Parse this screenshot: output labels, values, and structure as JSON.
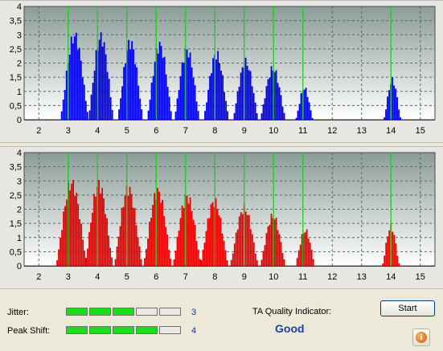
{
  "chart_data": [
    {
      "type": "bar",
      "title": "",
      "xlabel": "",
      "ylabel": "",
      "xlim": [
        1.5,
        15.5
      ],
      "ylim": [
        0,
        4
      ],
      "x_ticks": [
        "2",
        "3",
        "4",
        "5",
        "6",
        "7",
        "8",
        "9",
        "10",
        "11",
        "12",
        "13",
        "14",
        "15"
      ],
      "y_ticks": [
        "0",
        "0,5",
        "1",
        "1,5",
        "2",
        "2,5",
        "3",
        "3,5",
        "4"
      ],
      "grid": true,
      "marker_lines": [
        3,
        4,
        5,
        6,
        7,
        8,
        9,
        10,
        11,
        14
      ],
      "bar_color": "#0000e8",
      "marker_color": "#18d218",
      "series": [
        {
          "peaks": [
            {
              "center": 3.22,
              "height": 3.2,
              "half_width": 0.5
            },
            {
              "center": 4.12,
              "height": 3.15,
              "half_width": 0.45
            },
            {
              "center": 5.12,
              "height": 2.95,
              "half_width": 0.45
            },
            {
              "center": 6.12,
              "height": 2.85,
              "half_width": 0.45
            },
            {
              "center": 7.05,
              "height": 2.65,
              "half_width": 0.45
            },
            {
              "center": 8.05,
              "height": 2.5,
              "half_width": 0.45
            },
            {
              "center": 9.05,
              "height": 2.2,
              "half_width": 0.45
            },
            {
              "center": 9.98,
              "height": 1.95,
              "half_width": 0.45
            },
            {
              "center": 11.05,
              "height": 1.2,
              "half_width": 0.3
            },
            {
              "center": 14.05,
              "height": 1.5,
              "half_width": 0.3
            }
          ]
        }
      ]
    },
    {
      "type": "bar",
      "title": "",
      "xlabel": "",
      "ylabel": "",
      "xlim": [
        1.5,
        15.5
      ],
      "ylim": [
        0,
        4
      ],
      "x_ticks": [
        "2",
        "3",
        "4",
        "5",
        "6",
        "7",
        "8",
        "9",
        "10",
        "11",
        "12",
        "13",
        "14",
        "15"
      ],
      "y_ticks": [
        "0",
        "0,5",
        "1",
        "1,5",
        "2",
        "2,5",
        "3",
        "3,5",
        "4"
      ],
      "grid": true,
      "marker_lines": [
        3,
        4,
        5,
        6,
        7,
        8,
        9,
        10,
        11,
        14
      ],
      "bar_color": "#e80000",
      "marker_color": "#18d218",
      "series": [
        {
          "peaks": [
            {
              "center": 3.12,
              "height": 3.15,
              "half_width": 0.55
            },
            {
              "center": 4.05,
              "height": 3.1,
              "half_width": 0.5
            },
            {
              "center": 5.05,
              "height": 2.95,
              "half_width": 0.5
            },
            {
              "center": 6.05,
              "height": 2.85,
              "half_width": 0.5
            },
            {
              "center": 7.05,
              "height": 2.65,
              "half_width": 0.5
            },
            {
              "center": 7.98,
              "height": 2.45,
              "half_width": 0.5
            },
            {
              "center": 9.0,
              "height": 2.2,
              "half_width": 0.5
            },
            {
              "center": 9.98,
              "height": 1.9,
              "half_width": 0.45
            },
            {
              "center": 11.08,
              "height": 1.35,
              "half_width": 0.35
            },
            {
              "center": 14.0,
              "height": 1.5,
              "half_width": 0.3
            }
          ]
        }
      ]
    }
  ],
  "footer": {
    "jitter_label": "Jitter:",
    "jitter_value": "3",
    "jitter_level": 3,
    "peak_shift_label": "Peak Shift:",
    "peak_shift_value": "4",
    "peak_shift_level": 4,
    "meter_segments": 5,
    "quality_label": "TA Quality Indicator:",
    "quality_value": "Good",
    "start_label": "Start",
    "info_glyph": "i",
    "info_icon": "info-icon"
  }
}
